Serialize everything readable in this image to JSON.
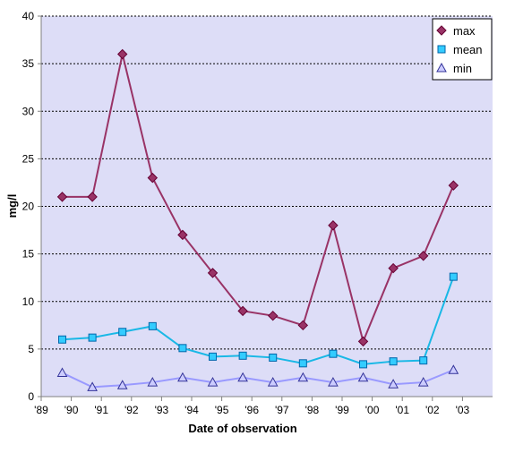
{
  "chart_data": {
    "type": "line",
    "xlabel": "Date of observation",
    "ylabel": "mg/l",
    "ylim": [
      0,
      40
    ],
    "yticks": [
      0,
      5,
      10,
      15,
      20,
      25,
      30,
      35,
      40
    ],
    "xlim": [
      1989,
      2004
    ],
    "xticks": [
      {
        "value": 1989,
        "label": "'89"
      },
      {
        "value": 1990,
        "label": "'90"
      },
      {
        "value": 1991,
        "label": "'91"
      },
      {
        "value": 1992,
        "label": "'92"
      },
      {
        "value": 1993,
        "label": "'93"
      },
      {
        "value": 1994,
        "label": "'94"
      },
      {
        "value": 1995,
        "label": "'95"
      },
      {
        "value": 1996,
        "label": "'96"
      },
      {
        "value": 1997,
        "label": "'97"
      },
      {
        "value": 1998,
        "label": "'98"
      },
      {
        "value": 1999,
        "label": "'99"
      },
      {
        "value": 2000,
        "label": "'00"
      },
      {
        "value": 2001,
        "label": "'01"
      },
      {
        "value": 2002,
        "label": "'02"
      },
      {
        "value": 2003,
        "label": "'03"
      }
    ],
    "x": [
      1989.7,
      1990.7,
      1991.7,
      1992.7,
      1993.7,
      1994.7,
      1995.7,
      1996.7,
      1997.7,
      1998.7,
      1999.7,
      2000.7,
      2001.7,
      2002.7
    ],
    "grid": "horizontal dashed",
    "legend_position": "top-right",
    "plot_background": "#ddddf7",
    "series": [
      {
        "name": "max",
        "color": "#993366",
        "marker": "diamond",
        "values": [
          21,
          21,
          36,
          23,
          17,
          13,
          9,
          8.5,
          7.5,
          18,
          5.8,
          13.5,
          14.8,
          22.2
        ]
      },
      {
        "name": "mean",
        "color": "#19b8e6",
        "marker": "square",
        "values": [
          6,
          6.2,
          6.8,
          7.4,
          5.1,
          4.2,
          4.3,
          4.1,
          3.5,
          4.5,
          3.4,
          3.7,
          3.8,
          12.6
        ]
      },
      {
        "name": "min",
        "color": "#9999ff",
        "marker": "triangle",
        "values": [
          2.5,
          1,
          1.2,
          1.5,
          2,
          1.5,
          2,
          1.5,
          2,
          1.5,
          2,
          1.3,
          1.5,
          2.8
        ]
      }
    ]
  }
}
